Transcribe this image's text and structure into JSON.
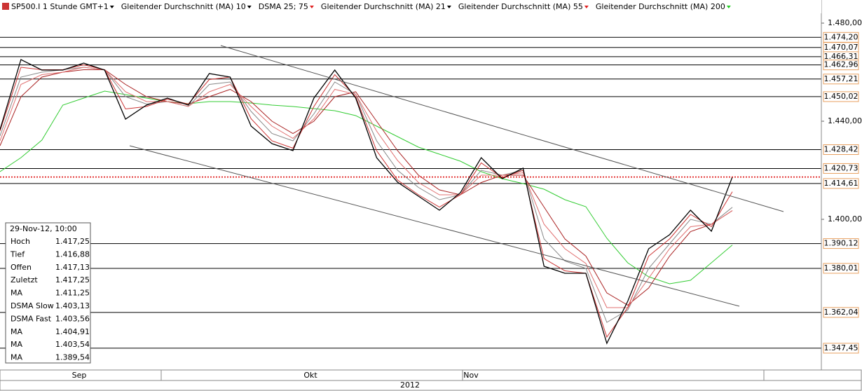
{
  "chart_data": {
    "type": "line",
    "categories": [
      null,
      null,
      null,
      null,
      null,
      null,
      null,
      null,
      null,
      null,
      null,
      null,
      null,
      null,
      null,
      null,
      null,
      null,
      null,
      null,
      null,
      null,
      null,
      null,
      null,
      null,
      null,
      null,
      null,
      null,
      null,
      null,
      null,
      null,
      null,
      null
    ],
    "series": [
      {
        "name": "SP500.I 1 Stunde GMT+1",
        "color": "#000000",
        "label_color": "#000000",
        "values": [
          1436.57,
          1465.14,
          1460.86,
          1460.86,
          1463.71,
          1460.86,
          1440.86,
          1446.57,
          1449.43,
          1446.57,
          1459.43,
          1458.0,
          1438.0,
          1430.86,
          1428.0,
          1449.43,
          1460.86,
          1449.43,
          1425.14,
          1415.14,
          1409.43,
          1403.71,
          1410.86,
          1425.14,
          1416.57,
          1420.86,
          1380.86,
          1378.0,
          1378.0,
          1349.43,
          1366.57,
          1388.0,
          1393.71,
          1403.71,
          1395.14,
          1417.25
        ]
      },
      {
        "name": "Gleitender Durchschnitt (MA) 10",
        "color": "#cc3333",
        "label_color": "#000000",
        "values": [
          1436,
          1462,
          1461,
          1461,
          1463,
          1461,
          1445,
          1446,
          1449,
          1447,
          1457,
          1458,
          1441,
          1432,
          1429,
          1446,
          1459,
          1450,
          1428,
          1416,
          1410,
          1405,
          1410,
          1423,
          1417,
          1420,
          1384,
          1379,
          1378,
          1352,
          1364,
          1385,
          1392,
          1402,
          1397,
          1411.25
        ]
      },
      {
        "name": "DSMA 25; 75",
        "color": "#e07070",
        "label_color": "#e02020",
        "values": [
          1432,
          1455,
          1459,
          1460,
          1462,
          1461,
          1452,
          1448,
          1448,
          1446,
          1452,
          1455,
          1446,
          1438,
          1433,
          1441,
          1453,
          1451,
          1436,
          1424,
          1415,
          1410,
          1410,
          1418,
          1418,
          1419,
          1398,
          1388,
          1382,
          1364,
          1364,
          1376,
          1388,
          1397,
          1398,
          1403.56
        ]
      },
      {
        "name": "Gleitender Durchschnitt (MA) 21",
        "color": "#888888",
        "label_color": "#000000",
        "values": [
          1434,
          1458,
          1460,
          1461,
          1462,
          1461,
          1450,
          1447,
          1448,
          1446,
          1455,
          1456,
          1444,
          1435,
          1432,
          1443,
          1456,
          1451,
          1432,
          1420,
          1413,
          1408,
          1410,
          1420,
          1418,
          1420,
          1392,
          1383,
          1380,
          1358,
          1363,
          1380,
          1390,
          1400,
          1398,
          1404.91
        ]
      },
      {
        "name": "Gleitender Durchschnitt (MA) 55",
        "color": "#aa2222",
        "label_color": "#e02020",
        "values": [
          1430,
          1450,
          1458,
          1460,
          1461,
          1461,
          1455,
          1450,
          1448,
          1447,
          1450,
          1453,
          1448,
          1440,
          1435,
          1440,
          1450,
          1452,
          1440,
          1428,
          1418,
          1412,
          1410,
          1415,
          1418,
          1418,
          1405,
          1392,
          1385,
          1370,
          1365,
          1372,
          1385,
          1395,
          1398,
          1403.54
        ]
      },
      {
        "name": "Gleitender Durchschnitt (MA) 200",
        "color": "#33cc33",
        "label_color": "#22cc22",
        "values": [
          1419.43,
          1425.14,
          1432.29,
          1446.57,
          1449.43,
          1452.29,
          1450.86,
          1449.43,
          1448.0,
          1447.14,
          1448.0,
          1448.0,
          1447.43,
          1446.57,
          1446.0,
          1445.14,
          1444.29,
          1442.29,
          1438.0,
          1433.71,
          1429.43,
          1426.57,
          1423.71,
          1419.43,
          1416.57,
          1414.57,
          1412.29,
          1408.0,
          1405.14,
          1392.29,
          1382.29,
          1376.57,
          1373.71,
          1375.14,
          1382.29,
          1389.54
        ]
      }
    ],
    "ylim": [
      1338.57,
      1489.43
    ],
    "yticks": [
      {
        "value": 1480,
        "label": "1.480,00"
      },
      {
        "value": 1440,
        "label": "1.440,00"
      },
      {
        "value": 1400,
        "label": "1.400,00"
      }
    ],
    "levels": [
      {
        "value": 1474.2,
        "label": "1.474,20"
      },
      {
        "value": 1470.07,
        "label": "1.470,07"
      },
      {
        "value": 1466.31,
        "label": "1.466,31"
      },
      {
        "value": 1462.96,
        "label": "1.462,96"
      },
      {
        "value": 1457.21,
        "label": "1.457,21"
      },
      {
        "value": 1450.02,
        "label": "1.450,02"
      },
      {
        "value": 1428.42,
        "label": "1.428,42"
      },
      {
        "value": 1420.73,
        "label": "1.420,73"
      },
      {
        "value": 1414.61,
        "label": "1.414,61"
      },
      {
        "value": 1390.12,
        "label": "1.390,12"
      },
      {
        "value": 1380.01,
        "label": "1.380,01"
      },
      {
        "value": 1362.04,
        "label": "1.362,04"
      },
      {
        "value": 1347.45,
        "label": "1.347,45"
      }
    ],
    "months": [
      "Sep",
      "Okt",
      "Nov"
    ],
    "year": "2012",
    "info_panel": {
      "title": "29-Nov-12, 10:00",
      "rows": [
        {
          "label": "Hoch",
          "value": "1.417,25",
          "color": "#000000"
        },
        {
          "label": "Tief",
          "value": "1.416,88",
          "color": "#000000"
        },
        {
          "label": "Offen",
          "value": "1.417,13",
          "color": "#000000"
        },
        {
          "label": "Zuletzt",
          "value": "1.417,25",
          "color": "#000000"
        },
        {
          "label": "MA",
          "value": "1.411,25",
          "color": "#000000"
        },
        {
          "label": "DSMA Slow",
          "value": "1.403,13",
          "color": "#118811"
        },
        {
          "label": "DSMA Fast",
          "value": "1.403,56",
          "color": "#dd2222"
        },
        {
          "label": "MA",
          "value": "1.404,91",
          "color": "#000000"
        },
        {
          "label": "MA",
          "value": "1.403,54",
          "color": "#dd2222"
        },
        {
          "label": "MA",
          "value": "1.389,54",
          "color": "#22cc22"
        }
      ]
    }
  }
}
